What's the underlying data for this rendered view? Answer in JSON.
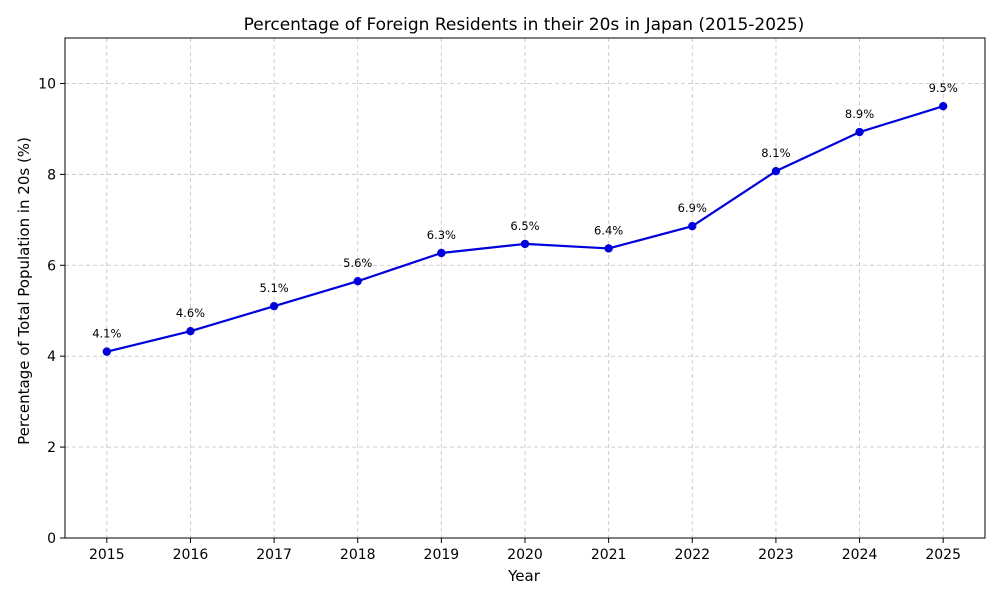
{
  "chart_data": {
    "type": "line",
    "title": "Percentage of Foreign Residents in their 20s in Japan (2015-2025)",
    "xlabel": "Year",
    "ylabel": "Percentage of Total Population in 20s (%)",
    "x": [
      2015,
      2016,
      2017,
      2018,
      2019,
      2020,
      2021,
      2022,
      2023,
      2024,
      2025
    ],
    "x_tick_labels": [
      "2015",
      "2016",
      "2017",
      "2018",
      "2019",
      "2020",
      "2021",
      "2022",
      "2023",
      "2024",
      "2025"
    ],
    "y_ticks": [
      0,
      2,
      4,
      6,
      8,
      10
    ],
    "y_tick_labels": [
      "0",
      "2",
      "4",
      "6",
      "8",
      "10"
    ],
    "ylim": [
      0,
      11
    ],
    "xlim": [
      2014.5,
      2025.5
    ],
    "grid": true,
    "series": [
      {
        "values": [
          4.1,
          4.55,
          5.1,
          5.65,
          6.27,
          6.47,
          6.37,
          6.86,
          8.07,
          8.93,
          9.5
        ],
        "color": "#0000dd",
        "marker": "circle"
      }
    ],
    "data_labels": [
      "4.1%",
      "4.6%",
      "5.1%",
      "5.6%",
      "6.3%",
      "6.5%",
      "6.4%",
      "6.9%",
      "8.1%",
      "8.9%",
      "9.5%"
    ]
  }
}
